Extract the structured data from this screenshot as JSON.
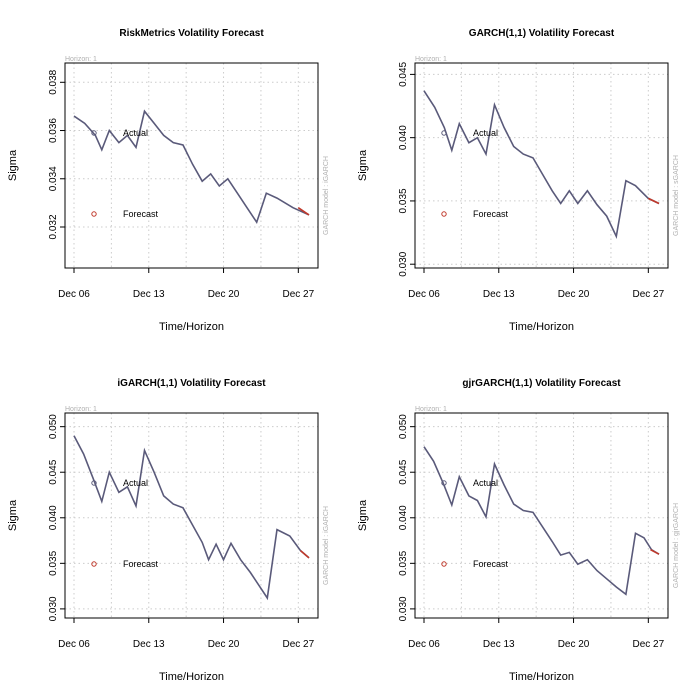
{
  "figure": {
    "background": "#ffffff"
  },
  "colors": {
    "actual": "#5a5a7a",
    "forecast": "#c0392b",
    "grid": "#cccccc",
    "note": "#b0b0b0"
  },
  "chart_data": [
    {
      "type": "line",
      "title": "RiskMetrics Volatility Forecast",
      "xlabel": "Time/Horizon",
      "ylabel": "Sigma",
      "horizon_label": "Horizon: 1",
      "side_label": "GARCH model :   iGARCH",
      "legend": [
        {
          "name": "Actual"
        },
        {
          "name": "Forecast"
        }
      ],
      "x_ticks": [
        "Dec 06",
        "Dec 13",
        "Dec 20",
        "Dec 27"
      ],
      "xlim": [
        0,
        22
      ],
      "ylim": [
        0.0303,
        0.0388
      ],
      "y_ticks": [
        0.032,
        0.034,
        0.036,
        0.038
      ],
      "y_tick_labels": [
        "0.032",
        "0.034",
        "0.036",
        "0.038"
      ],
      "actual": [
        0.0366,
        0.0363,
        0.0358,
        0.0352,
        0.036,
        0.0355,
        0.0358,
        0.0353,
        0.0368,
        0.0363,
        0.0358,
        0.0355,
        0.0354,
        0.0346,
        0.0339,
        0.0342,
        0.0337,
        0.034,
        0.0334,
        0.0328,
        0.0322,
        0.0334,
        0.0332,
        0.0328,
        0.0325
      ],
      "forecast": [
        {
          "x": 21,
          "y": 0.0328
        },
        {
          "x": 22,
          "y": 0.0325
        }
      ],
      "actual_x": [
        0,
        1,
        2,
        2.6,
        3.3,
        4.2,
        5,
        5.8,
        6.6,
        7.5,
        8.4,
        9.3,
        10.2,
        11.1,
        12,
        12.8,
        13.6,
        14.4,
        15.3,
        16.2,
        17.1,
        18,
        19,
        20.5,
        22
      ]
    },
    {
      "type": "line",
      "title": "GARCH(1,1) Volatility Forecast",
      "xlabel": "Time/Horizon",
      "ylabel": "Sigma",
      "horizon_label": "Horizon: 1",
      "side_label": "GARCH model :   sGARCH",
      "legend": [
        {
          "name": "Actual"
        },
        {
          "name": "Forecast"
        }
      ],
      "x_ticks": [
        "Dec 06",
        "Dec 13",
        "Dec 20",
        "Dec 27"
      ],
      "xlim": [
        0,
        22
      ],
      "ylim": [
        0.0297,
        0.0459
      ],
      "y_ticks": [
        0.03,
        0.035,
        0.04,
        0.045
      ],
      "y_tick_labels": [
        "0.030",
        "0.035",
        "0.040",
        "0.045"
      ],
      "actual": [
        0.0437,
        0.0424,
        0.0408,
        0.039,
        0.0411,
        0.0396,
        0.04,
        0.0387,
        0.0426,
        0.0408,
        0.0393,
        0.0387,
        0.0384,
        0.0371,
        0.0358,
        0.0348,
        0.0358,
        0.0348,
        0.0358,
        0.0347,
        0.0338,
        0.0322,
        0.0366,
        0.0362,
        0.0352,
        0.0348
      ],
      "forecast": [
        {
          "x": 21,
          "y": 0.0352
        },
        {
          "x": 22,
          "y": 0.0348
        }
      ],
      "actual_x": [
        0,
        1,
        1.9,
        2.6,
        3.3,
        4.2,
        5,
        5.8,
        6.6,
        7.5,
        8.4,
        9.3,
        10.2,
        11.1,
        12,
        12.8,
        13.6,
        14.4,
        15.3,
        16.2,
        17.1,
        18,
        18.9,
        19.8,
        21,
        22
      ]
    },
    {
      "type": "line",
      "title": "iGARCH(1,1) Volatility Forecast",
      "xlabel": "Time/Horizon",
      "ylabel": "Sigma",
      "horizon_label": "Horizon: 1",
      "side_label": "GARCH model :   iGARCH",
      "legend": [
        {
          "name": "Actual"
        },
        {
          "name": "Forecast"
        }
      ],
      "x_ticks": [
        "Dec 06",
        "Dec 13",
        "Dec 20",
        "Dec 27"
      ],
      "xlim": [
        0,
        22
      ],
      "ylim": [
        0.029,
        0.0515
      ],
      "y_ticks": [
        0.03,
        0.035,
        0.04,
        0.045,
        0.05
      ],
      "y_tick_labels": [
        "0.030",
        "0.035",
        "0.040",
        "0.045",
        "0.050"
      ],
      "actual": [
        0.049,
        0.047,
        0.0443,
        0.0418,
        0.045,
        0.0428,
        0.0434,
        0.0413,
        0.0474,
        0.045,
        0.0424,
        0.0415,
        0.0411,
        0.0392,
        0.0373,
        0.0354,
        0.0371,
        0.0354,
        0.0372,
        0.0354,
        0.034,
        0.0326,
        0.0312,
        0.0387,
        0.038,
        0.0364,
        0.0356
      ],
      "forecast": [
        {
          "x": 21.2,
          "y": 0.0364
        },
        {
          "x": 22,
          "y": 0.0356
        }
      ],
      "actual_x": [
        0,
        0.9,
        1.8,
        2.6,
        3.3,
        4.2,
        5,
        5.8,
        6.6,
        7.5,
        8.4,
        9.3,
        10.2,
        11.1,
        12,
        12.6,
        13.3,
        14,
        14.7,
        15.6,
        16.5,
        17.3,
        18.1,
        19,
        20.2,
        21.2,
        22
      ]
    },
    {
      "type": "line",
      "title": "gjrGARCH(1,1) Volatility Forecast",
      "xlabel": "Time/Horizon",
      "ylabel": "Sigma",
      "horizon_label": "Horizon: 1",
      "side_label": "GARCH model :   gjrGARCH",
      "legend": [
        {
          "name": "Actual"
        },
        {
          "name": "Forecast"
        }
      ],
      "x_ticks": [
        "Dec 06",
        "Dec 13",
        "Dec 20",
        "Dec 27"
      ],
      "xlim": [
        0,
        22
      ],
      "ylim": [
        0.029,
        0.0515
      ],
      "y_ticks": [
        0.03,
        0.035,
        0.04,
        0.045,
        0.05
      ],
      "y_tick_labels": [
        "0.030",
        "0.035",
        "0.040",
        "0.045",
        "0.050"
      ],
      "actual": [
        0.0478,
        0.0462,
        0.0438,
        0.0414,
        0.0445,
        0.0424,
        0.0419,
        0.0401,
        0.0459,
        0.0436,
        0.0415,
        0.0408,
        0.0406,
        0.039,
        0.0374,
        0.0359,
        0.0362,
        0.0349,
        0.0354,
        0.0342,
        0.0333,
        0.0324,
        0.0316,
        0.0383,
        0.0378,
        0.0365,
        0.036
      ],
      "forecast": [
        {
          "x": 21.2,
          "y": 0.0365
        },
        {
          "x": 22,
          "y": 0.036
        }
      ],
      "actual_x": [
        0,
        0.9,
        1.8,
        2.6,
        3.3,
        4.2,
        5,
        5.8,
        6.6,
        7.5,
        8.4,
        9.3,
        10.2,
        11.1,
        12,
        12.8,
        13.6,
        14.4,
        15.3,
        16.2,
        17.1,
        18,
        18.9,
        19.8,
        20.6,
        21.3,
        22
      ]
    }
  ]
}
